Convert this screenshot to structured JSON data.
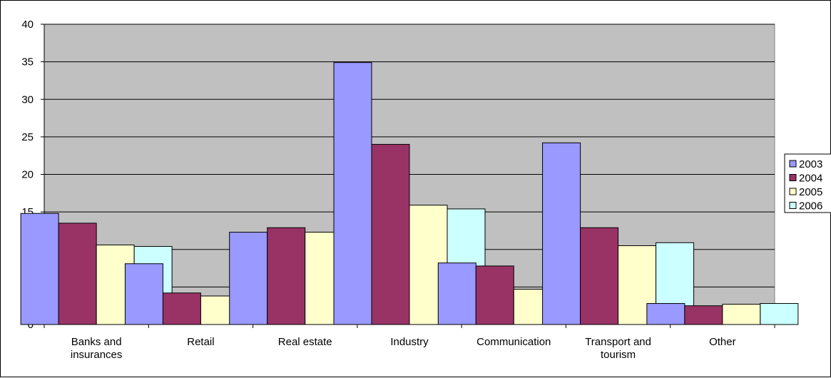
{
  "chart_data": {
    "type": "bar",
    "categories": [
      [
        "Banks and",
        "insurances"
      ],
      [
        "Retail"
      ],
      [
        "Real estate"
      ],
      [
        "Industry"
      ],
      [
        "Communication"
      ],
      [
        "Transport and",
        "tourism"
      ],
      [
        "Other"
      ]
    ],
    "series": [
      {
        "name": "2003",
        "color": "#9999ff",
        "values": [
          14.8,
          8.1,
          12.3,
          34.9,
          8.2,
          24.2,
          2.8
        ]
      },
      {
        "name": "2004",
        "color": "#993366",
        "values": [
          13.5,
          4.2,
          12.9,
          24.0,
          7.8,
          12.9,
          2.5
        ]
      },
      {
        "name": "2005",
        "color": "#ffffcc",
        "values": [
          10.6,
          3.8,
          12.3,
          15.9,
          4.7,
          10.5,
          2.7
        ]
      },
      {
        "name": "2006",
        "color": "#ccffff",
        "values": [
          10.4,
          3.9,
          15.0,
          15.4,
          4.6,
          10.9,
          2.8
        ]
      }
    ],
    "ylim": [
      0,
      40
    ],
    "yticks": [
      "0",
      "5",
      "10",
      "15",
      "20",
      "25",
      "30",
      "35",
      "40"
    ],
    "plot_background": "#c0c0c0",
    "grid": true,
    "legend_position": "right",
    "title": "",
    "xlabel": "",
    "ylabel": ""
  }
}
